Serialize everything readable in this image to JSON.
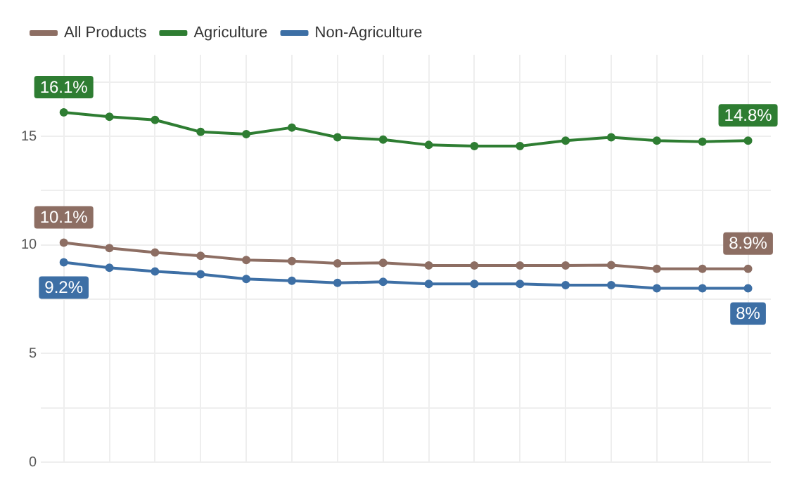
{
  "chart_data": {
    "type": "line",
    "categories": [
      null,
      null,
      null,
      null,
      null,
      null,
      null,
      null,
      null,
      null,
      null,
      null,
      null,
      null,
      null,
      null
    ],
    "ylim": [
      0,
      18.75
    ],
    "yticks": [
      0,
      {
        "value": 2.5,
        "label": null
      },
      5,
      {
        "value": 7.5,
        "label": null
      },
      10,
      {
        "value": 12.5,
        "label": null
      },
      15,
      {
        "value": 17.5,
        "label": null
      }
    ],
    "tick_labels": "y",
    "grid": true,
    "legend": "top left",
    "marker": "circle",
    "line_style": "solid",
    "series": [
      {
        "name": "All Products",
        "color": "#8d6e63",
        "values": [
          10.1,
          9.85,
          9.65,
          9.5,
          9.3,
          9.25,
          9.15,
          9.17,
          9.05,
          9.05,
          9.05,
          9.05,
          9.07,
          8.9,
          8.9,
          8.9
        ],
        "value_labels": [
          "10.1%",
          null,
          null,
          null,
          null,
          null,
          null,
          null,
          null,
          null,
          null,
          null,
          null,
          null,
          null,
          "8.9%"
        ]
      },
      {
        "name": "Agriculture",
        "color": "#2e7d32",
        "values": [
          16.1,
          15.9,
          15.75,
          15.2,
          15.1,
          15.4,
          14.95,
          14.85,
          14.6,
          14.55,
          14.55,
          14.8,
          14.95,
          14.8,
          14.75,
          14.8
        ],
        "value_labels": [
          "16.1%",
          null,
          null,
          null,
          null,
          null,
          null,
          null,
          null,
          null,
          null,
          null,
          null,
          null,
          null,
          "14.8%"
        ]
      },
      {
        "name": "Non-Agriculture",
        "color": "#3d6fa5",
        "values": [
          9.2,
          8.95,
          8.78,
          8.65,
          8.43,
          8.35,
          8.25,
          8.3,
          8.2,
          8.2,
          8.2,
          8.15,
          8.15,
          8.0,
          8.0,
          8.0
        ],
        "value_labels": [
          "9.2%",
          null,
          null,
          null,
          null,
          null,
          null,
          null,
          null,
          null,
          null,
          null,
          null,
          null,
          null,
          "8%"
        ]
      }
    ]
  }
}
